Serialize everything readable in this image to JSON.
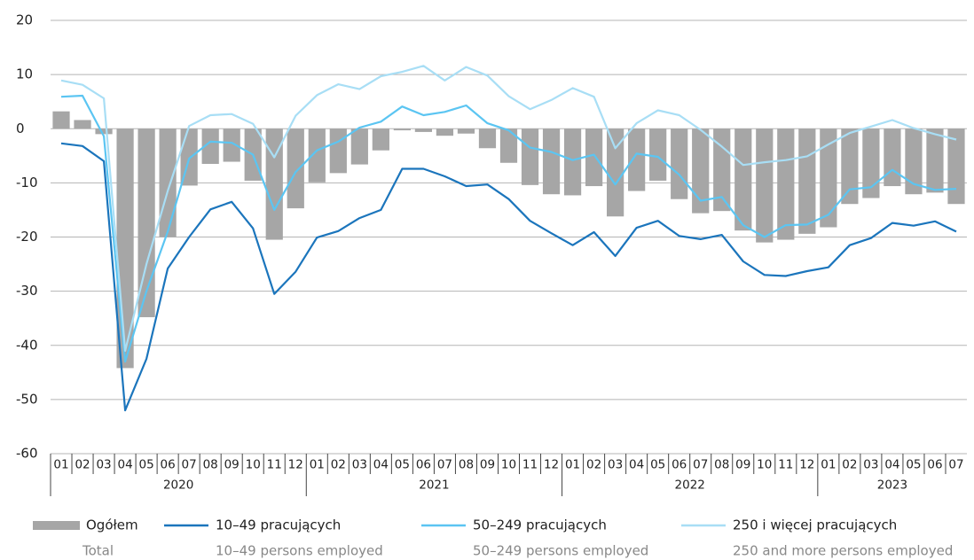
{
  "chart_data": {
    "type": "bar-line",
    "categories": [
      "01",
      "02",
      "03",
      "04",
      "05",
      "06",
      "07",
      "08",
      "09",
      "10",
      "11",
      "12",
      "01",
      "02",
      "03",
      "04",
      "05",
      "06",
      "07",
      "08",
      "09",
      "10",
      "11",
      "12",
      "01",
      "02",
      "03",
      "04",
      "05",
      "06",
      "07",
      "08",
      "09",
      "10",
      "11",
      "12",
      "01",
      "02",
      "03",
      "04",
      "05",
      "06",
      "07"
    ],
    "years": [
      "2020",
      "2021",
      "2022",
      "2023"
    ],
    "ylim": [
      -60,
      20
    ],
    "yticks": [
      -60,
      -50,
      -40,
      -30,
      -20,
      -10,
      0,
      10,
      20
    ],
    "grid": true,
    "series": [
      {
        "name": "Ogółem",
        "name_en": "Total",
        "type": "bar",
        "color": "#a6a6a6",
        "values": [
          3.2,
          1.6,
          -1,
          -44.2,
          -34.8,
          -20,
          -10.5,
          -6.5,
          -6.1,
          -9.6,
          -20.5,
          -14.7,
          -9.9,
          -8.2,
          -6.6,
          -4,
          -0.3,
          -0.6,
          -1.3,
          -0.9,
          -3.6,
          -6.3,
          -10.4,
          -12.1,
          -12.3,
          -10.6,
          -16.2,
          -11.5,
          -9.6,
          -13,
          -15.6,
          -15.2,
          -18.8,
          -21,
          -20.5,
          -19.4,
          -18.2,
          -13.9,
          -12.8,
          -10.6,
          -12.1,
          -11.8,
          -13.9
        ]
      },
      {
        "name": "10–49 pracujących",
        "name_en": "10–49 persons employed",
        "type": "line",
        "color": "#1b75bc",
        "values": [
          -2.7,
          -3.2,
          -6,
          -52,
          -42.5,
          -25.8,
          -20,
          -14.9,
          -13.5,
          -18.4,
          -30.5,
          -26.4,
          -20.1,
          -18.9,
          -16.5,
          -15,
          -7.4,
          -7.4,
          -8.8,
          -10.6,
          -10.3,
          -13,
          -17,
          -19.3,
          -21.5,
          -19.1,
          -23.5,
          -18.3,
          -17,
          -19.8,
          -20.4,
          -19.6,
          -24.5,
          -27,
          -27.2,
          -26.3,
          -25.6,
          -21.5,
          -20.2,
          -17.4,
          -17.9,
          -17.1,
          -19
        ]
      },
      {
        "name": "50–249 pracujących",
        "name_en": "50–249 persons employed",
        "type": "line",
        "color": "#5bc5f2",
        "values": [
          5.9,
          6.1,
          -1.4,
          -43,
          -30,
          -19,
          -5.5,
          -2.4,
          -2.6,
          -4.8,
          -15,
          -8,
          -4,
          -2.4,
          0.2,
          1.3,
          4.1,
          2.5,
          3.1,
          4.3,
          1,
          -0.3,
          -3.5,
          -4.3,
          -5.8,
          -4.8,
          -10.3,
          -4.6,
          -5.2,
          -8.5,
          -13.3,
          -12.6,
          -17.8,
          -20,
          -17.8,
          -17.7,
          -15.9,
          -11.2,
          -10.8,
          -7.6,
          -10.2,
          -11.3,
          -11.1
        ]
      },
      {
        "name": "250 i więcej pracujących",
        "name_en": "250 and more persons employed",
        "type": "line",
        "color": "#a8def5",
        "values": [
          8.9,
          8.1,
          5.6,
          -41,
          -25,
          -11.5,
          0.5,
          2.5,
          2.7,
          0.9,
          -5.3,
          2.4,
          6.2,
          8.2,
          7.3,
          9.7,
          10.5,
          11.6,
          8.9,
          11.4,
          9.8,
          6,
          3.6,
          5.3,
          7.5,
          5.9,
          -3.6,
          1,
          3.4,
          2.5,
          -0.2,
          -3.3,
          -6.7,
          -6.2,
          -5.8,
          -5.1,
          -2.9,
          -0.8,
          0.4,
          1.6,
          0.1,
          -1,
          -2
        ]
      }
    ]
  }
}
